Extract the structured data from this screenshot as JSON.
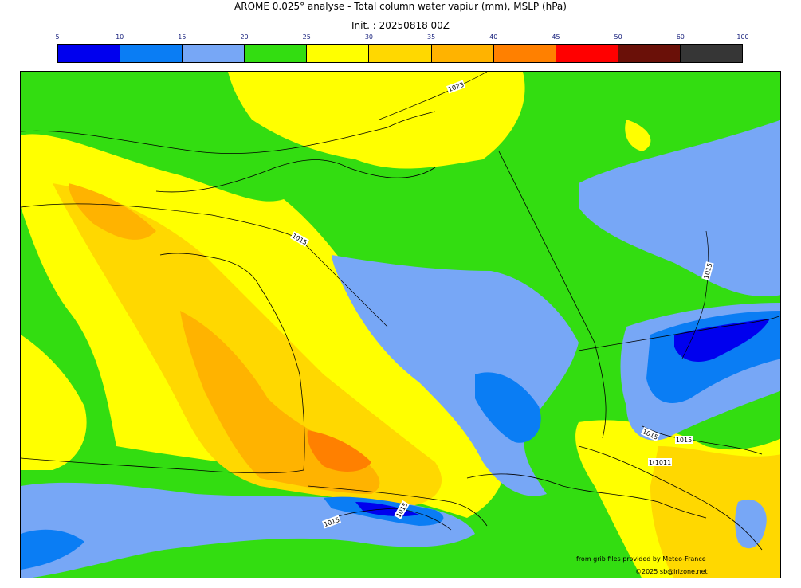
{
  "header": {
    "title": "AROME 0.025° analyse - Total column water vapiur (mm), MSLP (hPa)",
    "init": "Init. : 20250818 00Z"
  },
  "colorbar": {
    "ticks": [
      "5",
      "10",
      "15",
      "20",
      "25",
      "30",
      "35",
      "40",
      "45",
      "50",
      "60",
      "100"
    ],
    "colors": [
      "#0000ee",
      "#0a7df4",
      "#77a7f6",
      "#33dd11",
      "#ffff00",
      "#ffd800",
      "#ffb300",
      "#ff8000",
      "#ff0000",
      "#6a1008",
      "#363636"
    ]
  },
  "isobars": {
    "labels": [
      "1023",
      "1015",
      "1015",
      "1015",
      "1015",
      "1015",
      "1015",
      "1015",
      "1011"
    ]
  },
  "credits": {
    "source": "from grib files provided by Meteo-France",
    "copyright": "©2025 sb@irizone.net"
  }
}
